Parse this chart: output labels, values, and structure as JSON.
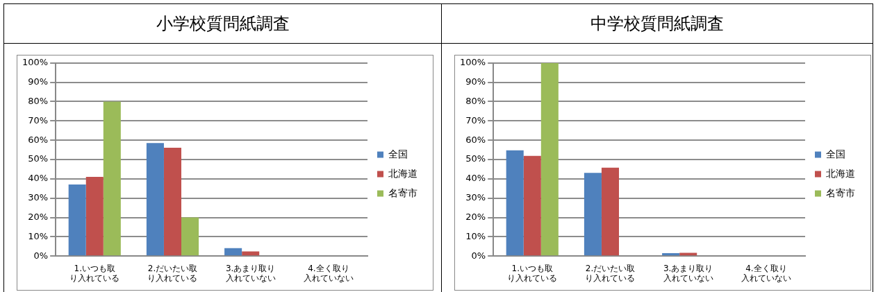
{
  "chart_data": [
    {
      "type": "bar",
      "title": "小学校質問紙調査",
      "categories": [
        "1.いつも取り入れている",
        "2.だいたい取り入れている",
        "3.あまり取り入れていない",
        "4.全く取り入れていない"
      ],
      "series": [
        {
          "name": "全国",
          "color": "#4f81bd",
          "values": [
            37.1,
            58.5,
            4.1,
            0
          ]
        },
        {
          "name": "北海道",
          "color": "#c0504d",
          "values": [
            41,
            56.1,
            2.4,
            0
          ]
        },
        {
          "name": "名寄市",
          "color": "#9bbb59",
          "values": [
            80,
            20,
            0,
            0
          ]
        }
      ],
      "ylim": [
        0,
        100
      ],
      "yticks": [
        {
          "value": 0,
          "label": "0%"
        },
        {
          "value": 10,
          "label": "10%"
        },
        {
          "value": 20,
          "label": "20%"
        },
        {
          "value": 30,
          "label": "30%"
        },
        {
          "value": 40,
          "label": "40%"
        },
        {
          "value": 50,
          "label": "50%"
        },
        {
          "value": 60,
          "label": "60%"
        },
        {
          "value": 70,
          "label": "70%"
        },
        {
          "value": 80,
          "label": "80%"
        },
        {
          "value": 90,
          "label": "90%"
        },
        {
          "value": 100,
          "label": "100%"
        }
      ],
      "grid": "y",
      "legend": "right"
    },
    {
      "type": "bar",
      "title": "中学校質問紙調査",
      "categories": [
        "1.いつも取り入れている",
        "2.だいたい取り入れている",
        "3.あまり取り入れていない",
        "4.全く取り入れていない"
      ],
      "series": [
        {
          "name": "全国",
          "color": "#4f81bd",
          "values": [
            54.8,
            43.1,
            1.5,
            0
          ]
        },
        {
          "name": "北海道",
          "color": "#c0504d",
          "values": [
            51.9,
            45.8,
            1.7,
            0
          ]
        },
        {
          "name": "名寄市",
          "color": "#9bbb59",
          "values": [
            100,
            0,
            0,
            0
          ]
        }
      ],
      "ylim": [
        0,
        100
      ],
      "yticks": [
        {
          "value": 0,
          "label": "0%"
        },
        {
          "value": 10,
          "label": "10%"
        },
        {
          "value": 20,
          "label": "20%"
        },
        {
          "value": 30,
          "label": "30%"
        },
        {
          "value": 40,
          "label": "40%"
        },
        {
          "value": 50,
          "label": "50%"
        },
        {
          "value": 60,
          "label": "60%"
        },
        {
          "value": 70,
          "label": "70%"
        },
        {
          "value": 80,
          "label": "80%"
        },
        {
          "value": 90,
          "label": "90%"
        },
        {
          "value": 100,
          "label": "100%"
        }
      ],
      "grid": "y",
      "legend": "right"
    }
  ]
}
